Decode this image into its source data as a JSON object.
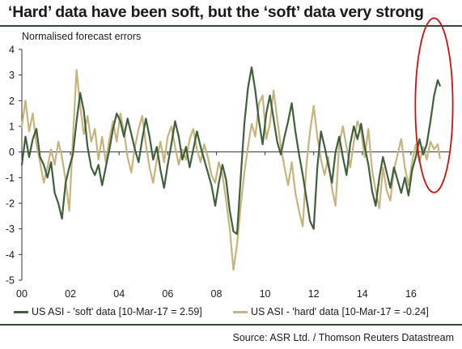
{
  "header": {
    "title": "‘Hard’ data have been soft, but the ‘soft’ data very strong"
  },
  "chart_data": {
    "type": "line",
    "subtitle": "Normalised forecast errors",
    "x_tick_labels": [
      "00",
      "02",
      "04",
      "06",
      "08",
      "10",
      "12",
      "14",
      "16"
    ],
    "y_tick_labels": [
      "4",
      "3",
      "2",
      "1",
      "0",
      "-1",
      "-2",
      "-3",
      "-4",
      "-5"
    ],
    "xlim": [
      2000.0,
      2017.6
    ],
    "ylim": [
      -5,
      4
    ],
    "grid": false,
    "legend_position": "bottom",
    "highlight_ellipse": {
      "x_center": 2016.95,
      "y_center": 1.82,
      "x_radius": 0.77,
      "y_radius": 3.4,
      "color": "#cc1111"
    },
    "series": [
      {
        "name": "US ASI - 'soft' data [10-Mar-17 = 2.59]",
        "color": "#3f5f3a",
        "x": [
          2000.0,
          2000.15,
          2000.3,
          2000.45,
          2000.6,
          2000.75,
          2000.9,
          2001.05,
          2001.2,
          2001.35,
          2001.5,
          2001.65,
          2001.8,
          2001.95,
          2002.1,
          2002.25,
          2002.4,
          2002.55,
          2002.7,
          2002.85,
          2003.0,
          2003.15,
          2003.3,
          2003.45,
          2003.6,
          2003.75,
          2003.9,
          2004.05,
          2004.2,
          2004.35,
          2004.5,
          2004.65,
          2004.8,
          2004.95,
          2005.1,
          2005.25,
          2005.4,
          2005.55,
          2005.7,
          2005.85,
          2006.0,
          2006.15,
          2006.3,
          2006.45,
          2006.6,
          2006.75,
          2006.9,
          2007.05,
          2007.2,
          2007.35,
          2007.5,
          2007.65,
          2007.8,
          2007.95,
          2008.1,
          2008.25,
          2008.4,
          2008.55,
          2008.7,
          2008.85,
          2009.0,
          2009.15,
          2009.3,
          2009.45,
          2009.6,
          2009.75,
          2009.9,
          2010.05,
          2010.2,
          2010.35,
          2010.5,
          2010.65,
          2010.8,
          2010.95,
          2011.1,
          2011.25,
          2011.4,
          2011.55,
          2011.7,
          2011.85,
          2012.0,
          2012.15,
          2012.3,
          2012.45,
          2012.6,
          2012.75,
          2012.9,
          2013.05,
          2013.2,
          2013.35,
          2013.5,
          2013.65,
          2013.8,
          2013.95,
          2014.1,
          2014.25,
          2014.4,
          2014.55,
          2014.7,
          2014.85,
          2015.0,
          2015.15,
          2015.3,
          2015.45,
          2015.6,
          2015.75,
          2015.9,
          2016.05,
          2016.2,
          2016.35,
          2016.5,
          2016.65,
          2016.8,
          2016.95,
          2017.1,
          2017.19
        ],
        "y": [
          -0.5,
          0.6,
          -0.2,
          0.5,
          0.9,
          -0.2,
          -0.5,
          -1.0,
          -0.4,
          -1.6,
          -2.0,
          -2.6,
          -1.2,
          -0.6,
          -0.1,
          1.2,
          2.3,
          1.6,
          0.2,
          -0.6,
          -0.9,
          -0.5,
          -1.3,
          -0.6,
          0.1,
          0.9,
          1.5,
          1.2,
          0.6,
          1.3,
          0.7,
          0.1,
          -0.4,
          0.5,
          1.3,
          0.6,
          -0.3,
          0.2,
          -0.7,
          -1.4,
          -0.5,
          0.3,
          1.2,
          0.6,
          -0.3,
          0.2,
          -0.6,
          0.1,
          0.8,
          0.2,
          -0.3,
          -0.8,
          -1.3,
          -2.1,
          -1.2,
          -0.5,
          -1.1,
          -2.3,
          -3.1,
          -3.2,
          -1.0,
          1.1,
          2.5,
          3.3,
          2.4,
          1.2,
          0.3,
          1.5,
          2.2,
          1.3,
          0.4,
          -0.1,
          0.6,
          1.2,
          1.9,
          0.8,
          -0.1,
          -0.9,
          -1.8,
          -2.7,
          -3.0,
          -0.6,
          0.8,
          0.2,
          -0.5,
          -1.2,
          0.0,
          0.6,
          -0.2,
          -0.9,
          0.3,
          1.0,
          0.5,
          1.1,
          0.2,
          -0.5,
          -1.5,
          -2.1,
          -1.0,
          -0.2,
          -0.8,
          -1.4,
          -0.6,
          -1.1,
          -1.6,
          -1.0,
          -1.7,
          -0.7,
          -0.2,
          0.5,
          -0.1,
          0.3,
          1.2,
          2.2,
          2.8,
          2.59
        ]
      },
      {
        "name": "US ASI - 'hard' data [10-Mar-17 = -0.24]",
        "color": "#c6b47e",
        "x": [
          2000.0,
          2000.15,
          2000.3,
          2000.45,
          2000.6,
          2000.75,
          2000.9,
          2001.05,
          2001.2,
          2001.35,
          2001.5,
          2001.65,
          2001.8,
          2001.95,
          2002.1,
          2002.25,
          2002.4,
          2002.55,
          2002.7,
          2002.85,
          2003.0,
          2003.15,
          2003.3,
          2003.45,
          2003.6,
          2003.75,
          2003.9,
          2004.05,
          2004.2,
          2004.35,
          2004.5,
          2004.65,
          2004.8,
          2004.95,
          2005.1,
          2005.25,
          2005.4,
          2005.55,
          2005.7,
          2005.85,
          2006.0,
          2006.15,
          2006.3,
          2006.45,
          2006.6,
          2006.75,
          2006.9,
          2007.05,
          2007.2,
          2007.35,
          2007.5,
          2007.65,
          2007.8,
          2007.95,
          2008.1,
          2008.25,
          2008.4,
          2008.55,
          2008.7,
          2008.85,
          2009.0,
          2009.15,
          2009.3,
          2009.45,
          2009.6,
          2009.75,
          2009.9,
          2010.05,
          2010.2,
          2010.35,
          2010.5,
          2010.65,
          2010.8,
          2010.95,
          2011.1,
          2011.25,
          2011.4,
          2011.55,
          2011.7,
          2011.85,
          2012.0,
          2012.15,
          2012.3,
          2012.45,
          2012.6,
          2012.75,
          2012.9,
          2013.05,
          2013.2,
          2013.35,
          2013.5,
          2013.65,
          2013.8,
          2013.95,
          2014.1,
          2014.25,
          2014.4,
          2014.55,
          2014.7,
          2014.85,
          2015.0,
          2015.15,
          2015.3,
          2015.45,
          2015.6,
          2015.75,
          2015.9,
          2016.05,
          2016.2,
          2016.35,
          2016.5,
          2016.65,
          2016.8,
          2016.95,
          2017.1,
          2017.19
        ],
        "y": [
          1.0,
          2.0,
          0.8,
          1.5,
          0.3,
          -0.4,
          -1.2,
          -0.6,
          0.1,
          -0.5,
          0.4,
          -0.2,
          -1.1,
          -2.3,
          0.5,
          3.2,
          1.8,
          0.7,
          1.4,
          0.4,
          0.9,
          -0.3,
          0.6,
          -0.4,
          0.5,
          1.2,
          0.4,
          1.5,
          0.8,
          -0.2,
          -0.8,
          0.2,
          0.9,
          1.4,
          0.3,
          -0.6,
          -1.2,
          -0.3,
          0.4,
          -0.4,
          0.6,
          1.0,
          0.2,
          -0.5,
          0.1,
          -0.3,
          0.5,
          0.9,
          0.1,
          -0.4,
          0.3,
          -0.2,
          -0.9,
          -1.2,
          -0.4,
          -0.9,
          -1.9,
          -3.0,
          -4.6,
          -3.6,
          -2.1,
          -0.8,
          0.2,
          1.1,
          0.6,
          1.9,
          2.2,
          0.5,
          1.1,
          2.4,
          1.3,
          0.2,
          -0.6,
          -1.3,
          -0.4,
          -1.6,
          -2.3,
          -2.9,
          -0.5,
          0.8,
          1.8,
          0.6,
          -0.3,
          -0.9,
          -0.2,
          -1.4,
          -2.1,
          0.3,
          1.0,
          0.2,
          -0.6,
          0.4,
          1.2,
          0.8,
          -0.2,
          0.9,
          -0.7,
          -1.5,
          -2.2,
          -0.6,
          -1.5,
          -1.9,
          -0.7,
          -0.1,
          0.5,
          -0.6,
          -1.3,
          -0.4,
          0.3,
          -0.4,
          0.2,
          -0.3,
          0.4,
          0.1,
          0.3,
          -0.24
        ]
      }
    ]
  },
  "legend": {
    "soft_label": "US ASI - 'soft' data [10-Mar-17 = 2.59]",
    "hard_label": "US ASI - 'hard' data [10-Mar-17 = -0.24]"
  },
  "footer": {
    "source": "Source: ASR Ltd. / Thomson Reuters Datastream"
  }
}
